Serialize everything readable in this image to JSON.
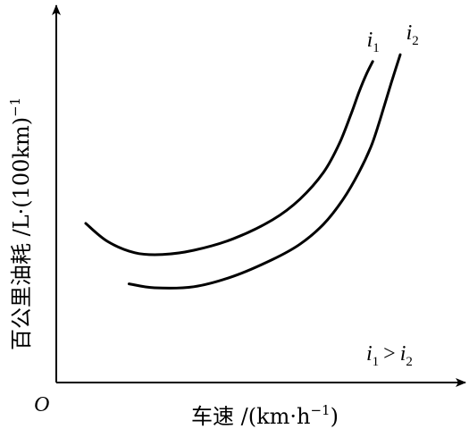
{
  "chart_data": {
    "type": "line",
    "title": "",
    "xlabel": "车速 /(km·h",
    "xlabel_sup": "−1",
    "xlabel_close": ")",
    "ylabel": "百公里油耗 /L·(100km)",
    "ylabel_sup": "−1",
    "origin_label": "O",
    "annotation": {
      "var1": "i",
      "sub1": "1",
      "op": ">",
      "var2": "i",
      "sub2": "2"
    },
    "xlim": [
      0,
      100
    ],
    "ylim": [
      0,
      100
    ],
    "grid": false,
    "legend": "none",
    "series": [
      {
        "name": "i1",
        "label_var": "i",
        "label_sub": "1",
        "x": [
          7.5,
          13,
          20,
          27,
          35,
          45,
          55,
          62,
          68,
          72,
          75,
          77,
          79,
          80.5
        ],
        "y": [
          44.5,
          39.5,
          36.3,
          35.8,
          37,
          40.2,
          45.5,
          51.3,
          58.8,
          66.8,
          75.1,
          81.2,
          86.5,
          89.8
        ]
      },
      {
        "name": "i2",
        "label_var": "i",
        "label_sub": "2",
        "x": [
          18.5,
          25,
          35,
          45,
          55,
          62,
          68,
          73,
          77,
          80,
          82,
          84,
          85.5,
          87.5
        ],
        "y": [
          27.6,
          26.5,
          26.8,
          29.7,
          34.4,
          38.7,
          44.3,
          51.3,
          58.8,
          65.8,
          72.2,
          79.4,
          84.8,
          91.7
        ]
      }
    ],
    "label_anchor": [
      {
        "x": 79,
        "y": 94
      },
      {
        "x": 89,
        "y": 96
      }
    ]
  }
}
